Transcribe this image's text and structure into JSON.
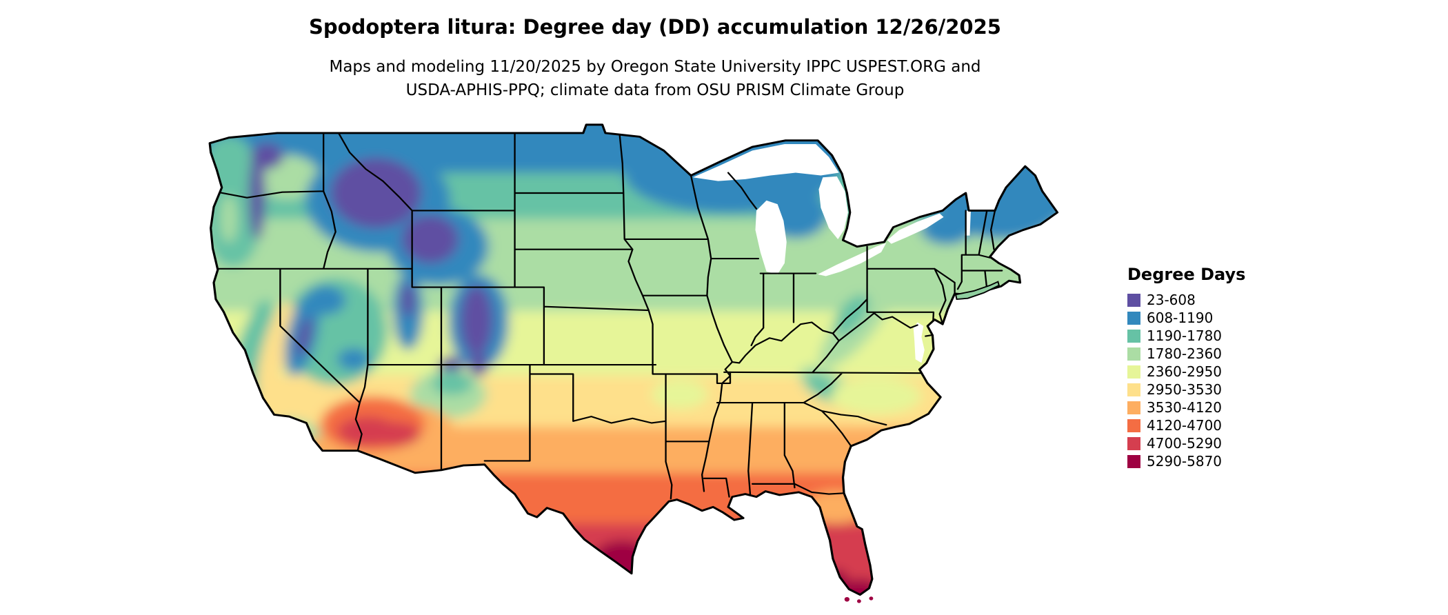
{
  "title": "Spodoptera litura: Degree day (DD) accumulation 12/26/2025",
  "subtitle": {
    "lines": [
      "Maps and modeling 11/20/2025 by Oregon State University IPPC USPEST.ORG and",
      "USDA-APHIS-PPQ; climate data from OSU PRISM Climate Group"
    ]
  },
  "legend": {
    "title": "Degree Days",
    "items": [
      {
        "label": "23-608",
        "color": "#5e4fa2"
      },
      {
        "label": "608-1190",
        "color": "#3288bd"
      },
      {
        "label": "1190-1780",
        "color": "#66c2a5"
      },
      {
        "label": "1780-2360",
        "color": "#abdda4"
      },
      {
        "label": "2360-2950",
        "color": "#e6f598"
      },
      {
        "label": "2950-3530",
        "color": "#fee08b"
      },
      {
        "label": "3530-4120",
        "color": "#fdae61"
      },
      {
        "label": "4120-4700",
        "color": "#f46d43"
      },
      {
        "label": "4700-5290",
        "color": "#d53e4f"
      },
      {
        "label": "5290-5870",
        "color": "#9e0142"
      }
    ]
  },
  "map": {
    "region_label": "Continental United States degree-day raster"
  }
}
